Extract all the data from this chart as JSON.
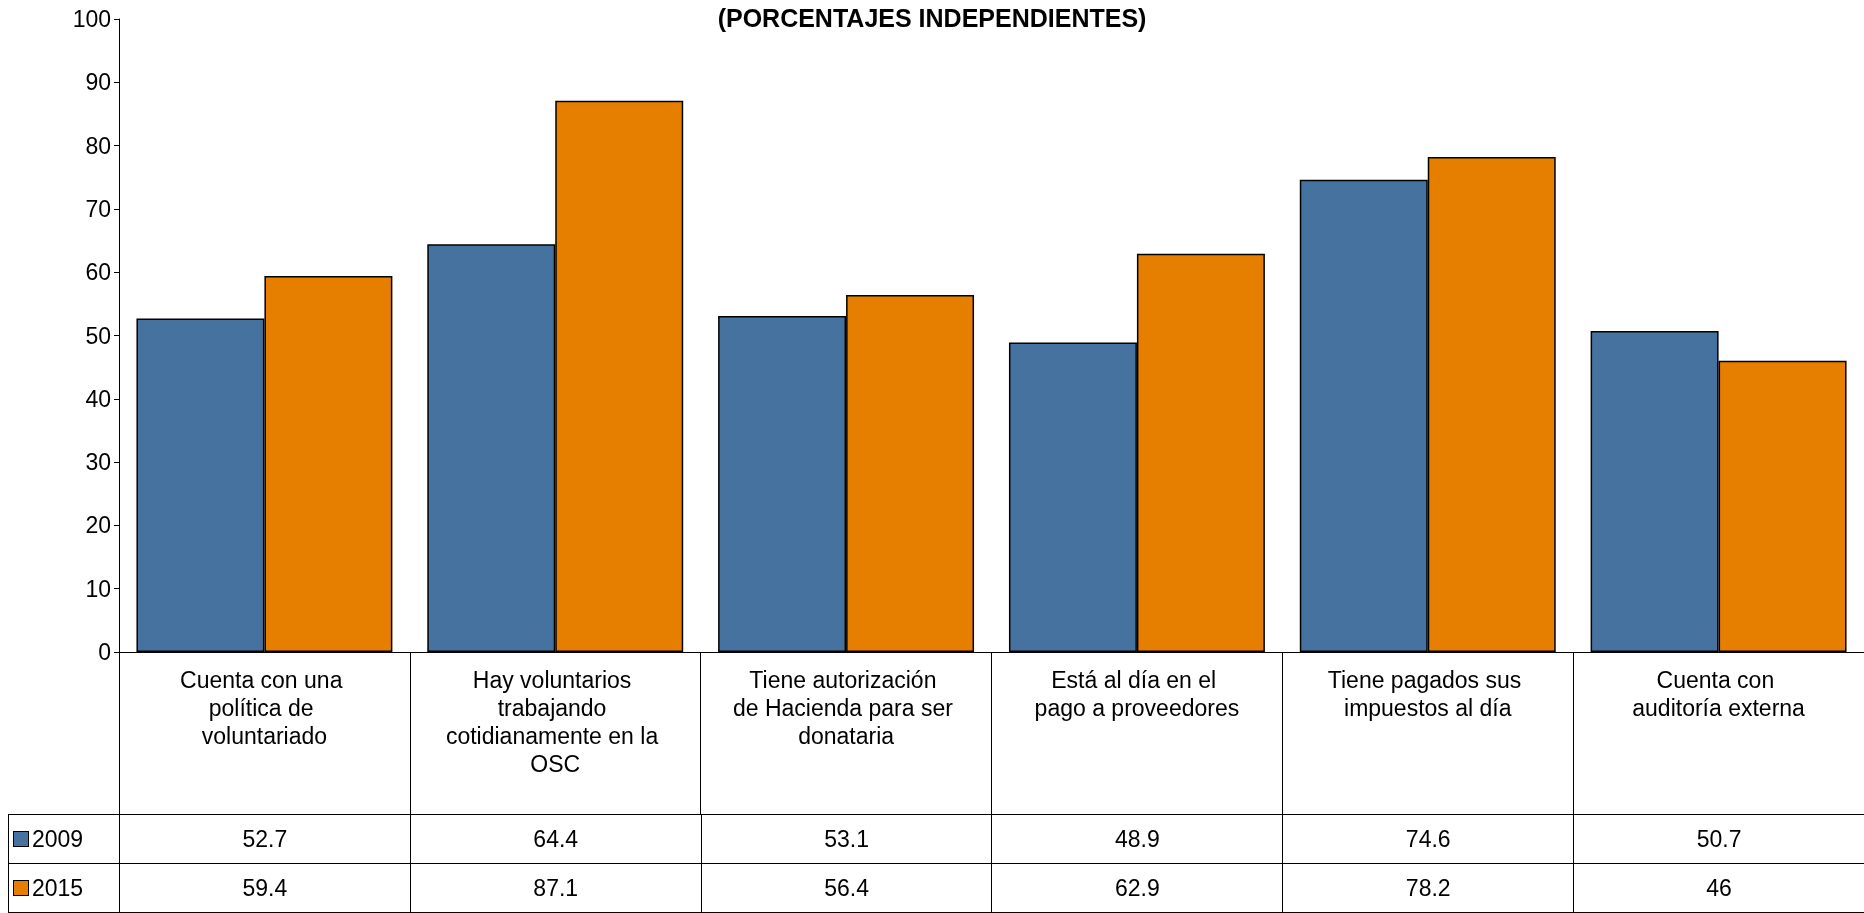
{
  "chart_data": {
    "type": "bar",
    "title": "(PORCENTAJES INDEPENDIENTES)",
    "categories": [
      "Cuenta con una política de voluntariado",
      "Hay voluntarios trabajando cotidianamente en la OSC",
      "Tiene autorización de Hacienda para ser donataria",
      "Está al día en el pago a proveedores",
      "Tiene pagados sus impuestos al día",
      "Cuenta con auditoría externa"
    ],
    "series": [
      {
        "name": "2009",
        "color": "#46729f",
        "values": [
          52.7,
          64.4,
          53.1,
          48.9,
          74.6,
          50.7
        ]
      },
      {
        "name": "2015",
        "color": "#e67e00",
        "values": [
          59.4,
          87.1,
          56.4,
          62.9,
          78.2,
          46
        ]
      }
    ],
    "ylim": [
      0,
      100
    ],
    "yticks": [
      0,
      10,
      20,
      30,
      40,
      50,
      60,
      70,
      80,
      90,
      100
    ],
    "grid": false,
    "legend": "bottom left",
    "data_labels": true
  }
}
